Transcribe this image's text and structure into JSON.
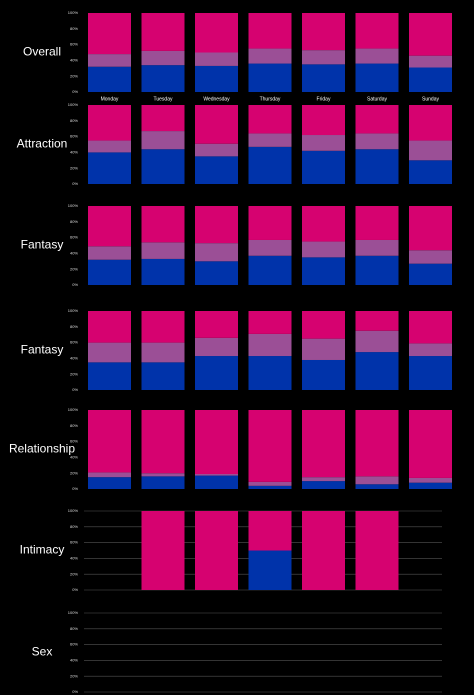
{
  "chart_data": [
    {
      "type": "bar",
      "stacked": true,
      "title": "Overall",
      "categories": [
        "Monday",
        "Tuesday",
        "Wednesday",
        "Thursday",
        "Friday",
        "Saturday",
        "Sunday"
      ],
      "series": [
        {
          "color": "#0033aa",
          "values": [
            32,
            34,
            33,
            36,
            35,
            36,
            31
          ]
        },
        {
          "color": "#9b4f96",
          "values": [
            16,
            18,
            17,
            19,
            18,
            19,
            15
          ]
        },
        {
          "color": "#d60270",
          "values": [
            52,
            48,
            50,
            45,
            47,
            45,
            54
          ]
        }
      ],
      "ylim": [
        0,
        100
      ],
      "yticks": [
        {
          "value": 0,
          "label": "0%"
        },
        {
          "value": 20,
          "label": "20%"
        },
        {
          "value": 40,
          "label": "40%"
        },
        {
          "value": 60,
          "label": "60%"
        },
        {
          "value": 80,
          "label": "80%"
        },
        {
          "value": 100,
          "label": "100%"
        }
      ],
      "grid": false
    },
    {
      "type": "bar",
      "stacked": true,
      "title": "Attraction",
      "series": [
        {
          "color": "#0033aa",
          "values": [
            40,
            44,
            35,
            47,
            42,
            44,
            30
          ]
        },
        {
          "color": "#9b4f96",
          "values": [
            15,
            23,
            16,
            17,
            20,
            20,
            25
          ]
        },
        {
          "color": "#d60270",
          "values": [
            45,
            33,
            49,
            36,
            38,
            36,
            45
          ]
        }
      ],
      "ylim": [
        0,
        100
      ],
      "yticks": [
        {
          "value": 0,
          "label": "0%"
        },
        {
          "value": 20,
          "label": "20%"
        },
        {
          "value": 40,
          "label": "40%"
        },
        {
          "value": 60,
          "label": "60%"
        },
        {
          "value": 80,
          "label": "80%"
        },
        {
          "value": 100,
          "label": "100%"
        }
      ],
      "grid": false
    },
    {
      "type": "bar",
      "stacked": true,
      "title": "Fantasy",
      "series": [
        {
          "color": "#0033aa",
          "values": [
            32,
            33,
            30,
            37,
            35,
            37,
            27
          ]
        },
        {
          "color": "#9b4f96",
          "values": [
            17,
            21,
            23,
            20,
            20,
            20,
            17
          ]
        },
        {
          "color": "#d60270",
          "values": [
            51,
            46,
            47,
            43,
            45,
            43,
            56
          ]
        }
      ],
      "ylim": [
        0,
        100
      ],
      "yticks": [
        {
          "value": 0,
          "label": "0%"
        },
        {
          "value": 20,
          "label": "20%"
        },
        {
          "value": 40,
          "label": "40%"
        },
        {
          "value": 60,
          "label": "60%"
        },
        {
          "value": 80,
          "label": "80%"
        },
        {
          "value": 100,
          "label": "100%"
        }
      ],
      "grid": false
    },
    {
      "type": "bar",
      "stacked": true,
      "title": "Fantasy",
      "series": [
        {
          "color": "#0033aa",
          "values": [
            35,
            35,
            43,
            43,
            38,
            48,
            43
          ]
        },
        {
          "color": "#9b4f96",
          "values": [
            25,
            25,
            23,
            28,
            27,
            27,
            16
          ]
        },
        {
          "color": "#d60270",
          "values": [
            40,
            40,
            34,
            29,
            35,
            25,
            41
          ]
        }
      ],
      "ylim": [
        0,
        100
      ],
      "yticks": [
        {
          "value": 0,
          "label": "0%"
        },
        {
          "value": 20,
          "label": "20%"
        },
        {
          "value": 40,
          "label": "40%"
        },
        {
          "value": 60,
          "label": "60%"
        },
        {
          "value": 80,
          "label": "80%"
        },
        {
          "value": 100,
          "label": "100%"
        }
      ],
      "grid": false
    },
    {
      "type": "bar",
      "stacked": true,
      "title": "Relationship",
      "series": [
        {
          "color": "#0033aa",
          "values": [
            15,
            16,
            17,
            4,
            10,
            6,
            8
          ]
        },
        {
          "color": "#9b4f96",
          "values": [
            6,
            4,
            2,
            5,
            5,
            10,
            6
          ]
        },
        {
          "color": "#d60270",
          "values": [
            79,
            80,
            81,
            91,
            85,
            84,
            86
          ]
        }
      ],
      "ylim": [
        0,
        100
      ],
      "yticks": [
        {
          "value": 0,
          "label": "0%"
        },
        {
          "value": 20,
          "label": "20%"
        },
        {
          "value": 40,
          "label": "40%"
        },
        {
          "value": 60,
          "label": "60%"
        },
        {
          "value": 80,
          "label": "80%"
        },
        {
          "value": 100,
          "label": "100%"
        }
      ],
      "grid": false
    },
    {
      "type": "bar",
      "stacked": true,
      "title": "Intimacy",
      "series": [
        {
          "color": "#0033aa",
          "values": [
            null,
            0,
            0,
            50,
            0,
            0,
            null
          ]
        },
        {
          "color": "#9b4f96",
          "values": [
            null,
            0,
            0,
            0,
            0,
            0,
            null
          ]
        },
        {
          "color": "#d60270",
          "values": [
            null,
            100,
            100,
            50,
            100,
            100,
            null
          ]
        }
      ],
      "ylim": [
        0,
        100
      ],
      "yticks": [
        {
          "value": 0,
          "label": "0%"
        },
        {
          "value": 20,
          "label": "20%"
        },
        {
          "value": 40,
          "label": "40%"
        },
        {
          "value": 60,
          "label": "60%"
        },
        {
          "value": 80,
          "label": "80%"
        },
        {
          "value": 100,
          "label": "100%"
        }
      ],
      "grid": true
    },
    {
      "type": "bar",
      "stacked": true,
      "title": "Sex",
      "series": [
        {
          "color": "#0033aa",
          "values": [
            null,
            null,
            null,
            null,
            null,
            null,
            null
          ]
        },
        {
          "color": "#9b4f96",
          "values": [
            null,
            null,
            null,
            null,
            null,
            null,
            null
          ]
        },
        {
          "color": "#d60270",
          "values": [
            null,
            null,
            null,
            null,
            null,
            null,
            null
          ]
        }
      ],
      "ylim": [
        0,
        100
      ],
      "yticks": [
        {
          "value": 0,
          "label": "0%"
        },
        {
          "value": 20,
          "label": "20%"
        },
        {
          "value": 40,
          "label": "40%"
        },
        {
          "value": 60,
          "label": "60%"
        },
        {
          "value": 80,
          "label": "80%"
        },
        {
          "value": 100,
          "label": "100%"
        }
      ],
      "grid": true
    }
  ]
}
